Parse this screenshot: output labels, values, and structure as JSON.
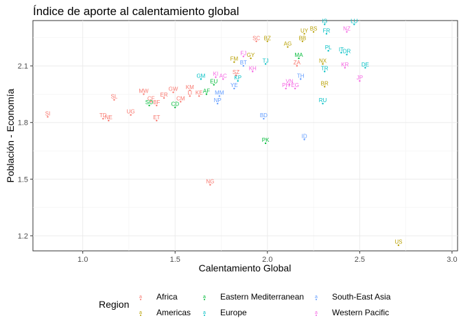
{
  "chart_data": {
    "type": "scatter",
    "title": "Índice de aporte al calentamiento global",
    "xlabel": "Calentamiento Global",
    "ylabel": "Población - Economía",
    "xlim": [
      0.73,
      3.03
    ],
    "ylim": [
      1.12,
      2.34
    ],
    "xticks": [
      1.0,
      1.5,
      2.0,
      2.5,
      3.0
    ],
    "xtick_labels": [
      "1.0",
      "1.5",
      "2.0",
      "2.5",
      "3.0"
    ],
    "yticks": [
      1.2,
      1.5,
      1.8,
      2.1
    ],
    "ytick_labels": [
      "1.2",
      "1.5",
      "1.8",
      "2.1"
    ],
    "grid": true,
    "legend_position": "bottom",
    "legend": {
      "title": "Region",
      "entries": [
        {
          "name": "Africa",
          "color": "#F8766D"
        },
        {
          "name": "Americas",
          "color": "#B79F00"
        },
        {
          "name": "Eastern Mediterranean",
          "color": "#00BA38"
        },
        {
          "name": "Europe",
          "color": "#00BFC4"
        },
        {
          "name": "South-East Asia",
          "color": "#619CFF"
        },
        {
          "name": "Western Pacific",
          "color": "#F564E3"
        }
      ]
    },
    "points": [
      {
        "label": "SI",
        "x": 0.81,
        "y": 1.83,
        "region": "Africa"
      },
      {
        "label": "SL",
        "x": 1.17,
        "y": 1.92,
        "region": "Africa"
      },
      {
        "label": "TD",
        "x": 1.11,
        "y": 1.82,
        "region": "Africa"
      },
      {
        "label": "NE",
        "x": 1.14,
        "y": 1.81,
        "region": "Africa"
      },
      {
        "label": "UG",
        "x": 1.26,
        "y": 1.84,
        "region": "Africa"
      },
      {
        "label": "MW",
        "x": 1.33,
        "y": 1.95,
        "region": "Africa"
      },
      {
        "label": "CF",
        "x": 1.37,
        "y": 1.91,
        "region": "Africa"
      },
      {
        "label": "BF",
        "x": 1.4,
        "y": 1.89,
        "region": "Africa"
      },
      {
        "label": "ET",
        "x": 1.4,
        "y": 1.81,
        "region": "Africa"
      },
      {
        "label": "ER",
        "x": 1.44,
        "y": 1.93,
        "region": "Africa"
      },
      {
        "label": "GW",
        "x": 1.49,
        "y": 1.96,
        "region": "Africa"
      },
      {
        "label": "CM",
        "x": 1.53,
        "y": 1.91,
        "region": "Africa"
      },
      {
        "label": "KM",
        "x": 1.58,
        "y": 1.97,
        "region": "Africa"
      },
      {
        "label": "LI",
        "x": 1.58,
        "y": 1.94,
        "region": "Africa"
      },
      {
        "label": "KE",
        "x": 1.63,
        "y": 1.94,
        "region": "Africa"
      },
      {
        "label": "SC",
        "x": 1.94,
        "y": 2.23,
        "region": "Africa"
      },
      {
        "label": "SZ",
        "x": 1.83,
        "y": 2.05,
        "region": "Africa"
      },
      {
        "label": "ZA",
        "x": 2.16,
        "y": 2.1,
        "region": "Africa"
      },
      {
        "label": "NG",
        "x": 1.69,
        "y": 1.47,
        "region": "Africa"
      },
      {
        "label": "CD",
        "x": 1.5,
        "y": 1.88,
        "region": "Eastern Mediterranean"
      },
      {
        "label": "SO",
        "x": 1.36,
        "y": 1.89,
        "region": "Eastern Mediterranean"
      },
      {
        "label": "AF",
        "x": 1.67,
        "y": 1.95,
        "region": "Eastern Mediterranean"
      },
      {
        "label": "EU",
        "x": 1.71,
        "y": 2.0,
        "region": "Eastern Mediterranean"
      },
      {
        "label": "MA",
        "x": 2.17,
        "y": 2.14,
        "region": "Eastern Mediterranean"
      },
      {
        "label": "PK",
        "x": 1.99,
        "y": 1.69,
        "region": "Eastern Mediterranean"
      },
      {
        "label": "GM",
        "x": 1.64,
        "y": 2.03,
        "region": "Europe"
      },
      {
        "label": "KP",
        "x": 1.84,
        "y": 2.02,
        "region": "Europe"
      },
      {
        "label": "TJ",
        "x": 1.99,
        "y": 2.11,
        "region": "Europe"
      },
      {
        "label": "IS",
        "x": 2.31,
        "y": 2.32,
        "region": "Europe"
      },
      {
        "label": "FR",
        "x": 2.32,
        "y": 2.27,
        "region": "Europe"
      },
      {
        "label": "LU",
        "x": 2.47,
        "y": 2.32,
        "region": "Europe"
      },
      {
        "label": "PL",
        "x": 2.33,
        "y": 2.18,
        "region": "Europe"
      },
      {
        "label": "IT",
        "x": 2.4,
        "y": 2.17,
        "region": "Europe"
      },
      {
        "label": "DR",
        "x": 2.43,
        "y": 2.16,
        "region": "Europe"
      },
      {
        "label": "TR",
        "x": 2.31,
        "y": 2.07,
        "region": "Europe"
      },
      {
        "label": "DE",
        "x": 2.53,
        "y": 2.09,
        "region": "Europe"
      },
      {
        "label": "RU",
        "x": 2.3,
        "y": 1.9,
        "region": "Europe"
      },
      {
        "label": "UY",
        "x": 2.2,
        "y": 2.27,
        "region": "Americas"
      },
      {
        "label": "BS",
        "x": 2.25,
        "y": 2.28,
        "region": "Americas"
      },
      {
        "label": "BB",
        "x": 2.19,
        "y": 2.23,
        "region": "Americas"
      },
      {
        "label": "BZ",
        "x": 2.0,
        "y": 2.23,
        "region": "Americas"
      },
      {
        "label": "AG",
        "x": 2.11,
        "y": 2.2,
        "region": "Americas"
      },
      {
        "label": "GY",
        "x": 1.91,
        "y": 2.14,
        "region": "Americas"
      },
      {
        "label": "FM",
        "x": 1.82,
        "y": 2.12,
        "region": "Americas"
      },
      {
        "label": "NX",
        "x": 2.3,
        "y": 2.11,
        "region": "Americas"
      },
      {
        "label": "BR",
        "x": 2.31,
        "y": 1.99,
        "region": "Americas"
      },
      {
        "label": "US",
        "x": 2.71,
        "y": 1.15,
        "region": "Americas"
      },
      {
        "label": "BD",
        "x": 1.98,
        "y": 1.82,
        "region": "South-East Asia"
      },
      {
        "label": "ID",
        "x": 2.2,
        "y": 1.71,
        "region": "South-East Asia"
      },
      {
        "label": "NP",
        "x": 1.73,
        "y": 1.9,
        "region": "South-East Asia"
      },
      {
        "label": "MM",
        "x": 1.74,
        "y": 1.94,
        "region": "South-East Asia"
      },
      {
        "label": "YE",
        "x": 1.82,
        "y": 1.98,
        "region": "South-East Asia"
      },
      {
        "label": "BT",
        "x": 1.87,
        "y": 2.1,
        "region": "South-East Asia"
      },
      {
        "label": "TH",
        "x": 2.18,
        "y": 2.03,
        "region": "South-East Asia"
      },
      {
        "label": "FJ",
        "x": 1.87,
        "y": 2.15,
        "region": "Western Pacific"
      },
      {
        "label": "KI",
        "x": 1.72,
        "y": 2.04,
        "region": "Western Pacific"
      },
      {
        "label": "AC",
        "x": 1.76,
        "y": 2.03,
        "region": "Western Pacific"
      },
      {
        "label": "KH",
        "x": 1.92,
        "y": 2.07,
        "region": "Western Pacific"
      },
      {
        "label": "VN",
        "x": 2.12,
        "y": 2.0,
        "region": "Western Pacific"
      },
      {
        "label": "PH",
        "x": 2.1,
        "y": 1.98,
        "region": "Western Pacific"
      },
      {
        "label": "EG",
        "x": 2.15,
        "y": 1.98,
        "region": "Western Pacific"
      },
      {
        "label": "KR",
        "x": 2.42,
        "y": 2.09,
        "region": "Western Pacific"
      },
      {
        "label": "JP",
        "x": 2.5,
        "y": 2.02,
        "region": "Western Pacific"
      },
      {
        "label": "NZ",
        "x": 2.43,
        "y": 2.28,
        "region": "Western Pacific"
      }
    ]
  }
}
